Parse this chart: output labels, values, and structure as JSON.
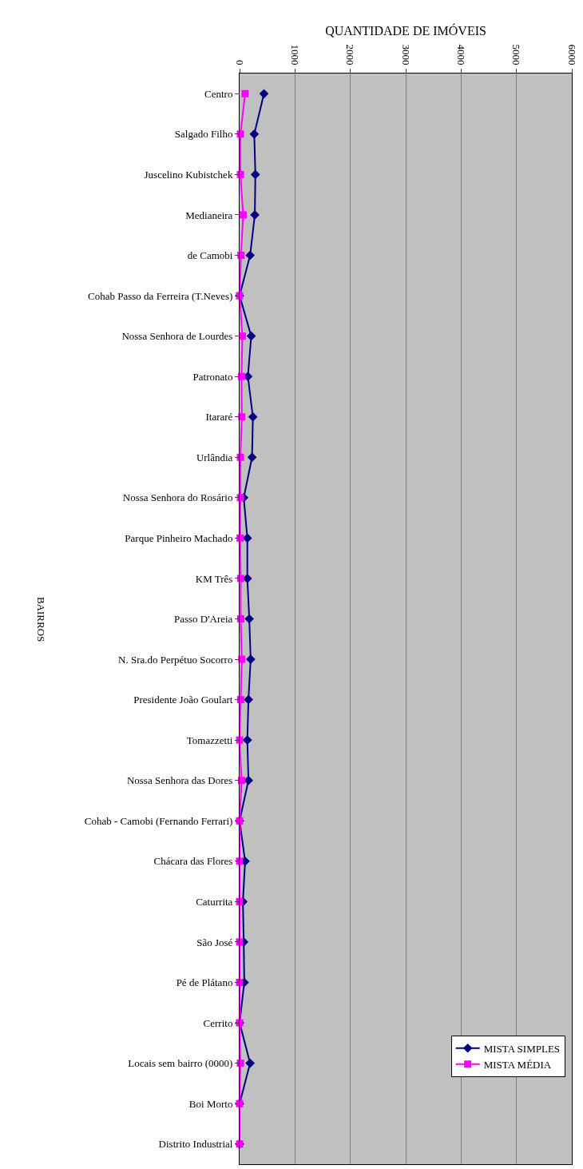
{
  "chart_data": {
    "type": "line",
    "orientation": "horizontal",
    "xlabel": "QUANTIDADE DE IMÓVEIS",
    "ylabel": "BAIRROS",
    "categories": [
      "Centro",
      "Salgado Filho",
      "Juscelino Kubistchek",
      "Medianeira",
      "de Camobi",
      "Cohab Passo da Ferreira (T.Neves)",
      "Nossa Senhora de Lourdes",
      "Patronato",
      "Itararé",
      "Urlândia",
      "Nossa Senhora do Rosário",
      "Parque Pinheiro Machado",
      "KM Três",
      "Passo D'Areia",
      "N. Sra.do Perpétuo Socorro",
      "Presidente João Goulart",
      "Tomazzetti",
      "Nossa Senhora das Dores",
      "Cohab - Camobi (Fernando Ferrari)",
      "Chácara das Flores",
      "Caturrita",
      "São José",
      "Pé de Plátano",
      "Cerrito",
      "Locais sem bairro (0000)",
      "Boi Morto",
      "Distrito Industrial"
    ],
    "series": [
      {
        "name": "MISTA SIMPLES",
        "color": "#000080",
        "marker": "diamond",
        "values": [
          440,
          265,
          285,
          275,
          190,
          0,
          210,
          150,
          240,
          225,
          75,
          140,
          140,
          175,
          200,
          160,
          140,
          160,
          0,
          100,
          60,
          75,
          85,
          0,
          190,
          0,
          0
        ]
      },
      {
        "name": "MISTA MÉDIA",
        "color": "#ff00ff",
        "marker": "square",
        "values": [
          100,
          15,
          15,
          65,
          25,
          0,
          50,
          35,
          40,
          15,
          15,
          10,
          20,
          20,
          40,
          20,
          0,
          35,
          0,
          0,
          0,
          0,
          0,
          0,
          15,
          0,
          0
        ]
      }
    ],
    "xlim": [
      0,
      6000
    ],
    "xticks": [
      0,
      1000,
      2000,
      3000,
      4000,
      5000,
      6000
    ],
    "grid": "x",
    "legend": "bottom right"
  }
}
